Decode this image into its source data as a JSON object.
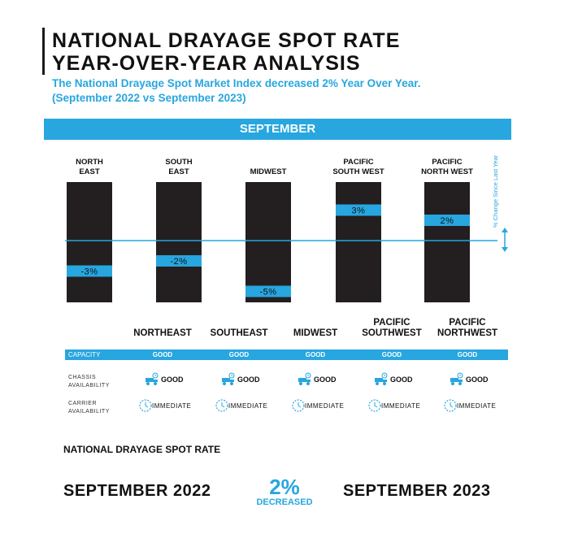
{
  "header": {
    "title_line1": "NATIONAL DRAYAGE SPOT RATE",
    "title_line2": "YEAR-OVER-YEAR ANALYSIS",
    "subtitle_line1": "The National Drayage Spot Market Index decreased 2% Year Over Year.",
    "subtitle_line2": "(September 2022 vs September 2023)"
  },
  "month_label": "SEPTEMBER",
  "colors": {
    "accent": "#27a6df",
    "bar": "#231f20",
    "text": "#111111"
  },
  "chart_data": {
    "type": "bar",
    "title": "SEPTEMBER",
    "ylabel": "% Change Since Last Year",
    "categories": [
      [
        "NORTH",
        "EAST"
      ],
      [
        "SOUTH",
        "EAST"
      ],
      [
        "MIDWEST"
      ],
      [
        "PACIFIC",
        "SOUTH WEST"
      ],
      [
        "PACIFIC",
        "NORTH WEST"
      ]
    ],
    "values": [
      -3,
      -2,
      -5,
      3,
      2
    ],
    "value_labels": [
      "-3%",
      "-2%",
      "-5%",
      "3%",
      "2%"
    ],
    "ylim": [
      -6,
      6
    ],
    "grid": false
  },
  "regions": [
    "NORTHEAST",
    "SOUTHEAST",
    "MIDWEST",
    [
      "PACIFIC",
      "SOUTHWEST"
    ],
    [
      "PACIFIC",
      "NORTHWEST"
    ]
  ],
  "capacity": {
    "label": "CAPACITY",
    "values": [
      "GOOD",
      "GOOD",
      "GOOD",
      "GOOD",
      "GOOD"
    ]
  },
  "chassis": {
    "label_line1": "CHASSIS",
    "label_line2": "AVAILABILITY",
    "values": [
      "GOOD",
      "GOOD",
      "GOOD",
      "GOOD",
      "GOOD"
    ],
    "icon": "chassis-truck-icon"
  },
  "carrier": {
    "label_line1": "CARRIER",
    "label_line2": "AVAILABILITY",
    "values": [
      "IMMEDIATE",
      "IMMEDIATE",
      "IMMEDIATE",
      "IMMEDIATE",
      "IMMEDIATE"
    ],
    "icon": "clock-icon"
  },
  "summary": {
    "label": "NATIONAL DRAYAGE SPOT RATE",
    "from": "SEPTEMBER 2022",
    "to": "SEPTEMBER 2023",
    "change": "2%",
    "change_word": "DECREASED"
  }
}
